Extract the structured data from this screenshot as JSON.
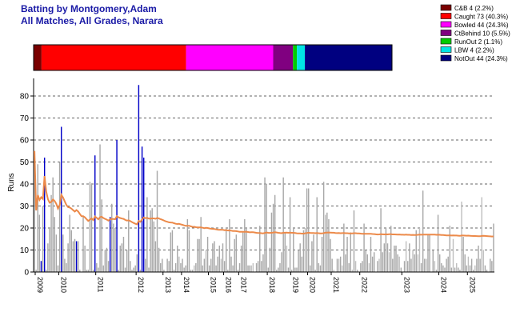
{
  "chart_data": {
    "type": "bar",
    "title": "Batting by Montgomery,Adam",
    "subtitle": "All Matches, All Grades, Narara",
    "ylabel": "Runs",
    "xlabel": "",
    "ylim": [
      0,
      88
    ],
    "yticks": [
      0,
      10,
      20,
      30,
      40,
      50,
      60,
      70,
      80
    ],
    "grid": true,
    "dismissals": [
      {
        "label": "C&B 4 (2.2%)",
        "count": 4,
        "color": "#7a0000"
      },
      {
        "label": "Caught 73 (40.3%)",
        "count": 73,
        "color": "#ff0000"
      },
      {
        "label": "Bowled 44 (24.3%)",
        "count": 44,
        "color": "#ff00ff"
      },
      {
        "label": "CtBehind 10 (5.5%)",
        "count": 10,
        "color": "#800080"
      },
      {
        "label": "RunOut 2 (1.1%)",
        "count": 2,
        "color": "#00cc00"
      },
      {
        "label": "LBW 4 (2.2%)",
        "count": 4,
        "color": "#00e5e5"
      },
      {
        "label": "NotOut 44 (24.3%)",
        "count": 44,
        "color": "#000080"
      }
    ],
    "year_labels": [
      "2009",
      "2010",
      "2011",
      "2012",
      "2013",
      "2014",
      "2015",
      "2016",
      "2017",
      "2018",
      "2019",
      "2020",
      "2021",
      "2022",
      "2023",
      "2024",
      "2025"
    ],
    "year_positions": [
      0,
      14,
      36,
      60,
      76,
      87,
      103,
      112,
      121,
      138,
      152,
      162,
      176,
      193,
      218,
      240,
      257
    ],
    "runs": [
      55,
      1,
      49,
      26,
      5,
      30,
      52,
      1,
      13,
      20,
      35,
      43,
      25,
      17,
      3,
      50,
      66,
      17,
      6,
      4,
      13,
      26,
      19,
      14,
      15,
      14,
      14,
      1,
      0,
      25,
      12,
      1,
      1,
      41,
      40,
      1,
      53,
      4,
      2,
      58,
      33,
      3,
      10,
      11,
      5,
      25,
      31,
      22,
      20,
      60,
      1,
      12,
      13,
      16,
      2,
      10,
      28,
      5,
      1,
      2,
      3,
      8,
      85,
      1,
      57,
      52,
      6,
      34,
      2,
      28,
      29,
      23,
      14,
      46,
      11,
      4,
      6,
      1,
      0,
      6,
      5,
      18,
      19,
      1,
      4,
      12,
      7,
      4,
      6,
      2,
      3,
      24,
      19,
      1,
      1,
      3,
      4,
      15,
      15,
      25,
      3,
      6,
      10,
      16,
      3,
      6,
      13,
      14,
      3,
      7,
      12,
      6,
      13,
      5,
      20,
      1,
      24,
      7,
      3,
      15,
      17,
      1,
      4,
      12,
      18,
      24,
      20,
      3,
      3,
      3,
      4,
      0,
      4,
      5,
      21,
      5,
      8,
      43,
      40,
      2,
      11,
      27,
      31,
      35,
      1,
      2,
      4,
      9,
      43,
      18,
      12,
      2,
      34,
      1,
      20,
      2,
      2,
      10,
      13,
      7,
      19,
      20,
      38,
      38,
      3,
      14,
      17,
      1,
      34,
      4,
      3,
      16,
      41,
      26,
      27,
      24,
      15,
      6,
      1,
      0,
      6,
      6,
      7,
      3,
      22,
      8,
      16,
      4,
      18,
      1,
      28,
      5,
      1,
      0,
      4,
      5,
      22,
      10,
      8,
      4,
      16,
      7,
      9,
      0,
      5,
      6,
      29,
      9,
      13,
      20,
      13,
      9,
      21,
      6,
      12,
      12,
      8,
      7,
      2,
      0,
      5,
      14,
      5,
      13,
      6,
      10,
      8,
      19,
      8,
      20,
      4,
      37,
      6,
      6,
      17,
      17,
      0,
      10,
      5,
      1,
      26,
      8,
      4,
      3,
      2,
      6,
      7,
      21,
      2,
      15,
      2,
      4,
      2,
      1,
      32,
      16,
      8,
      3,
      7,
      3,
      6,
      1,
      3,
      6,
      12,
      6,
      34,
      10,
      3,
      1,
      0,
      6,
      5,
      22
    ],
    "not_out_index": [
      4,
      6,
      16,
      25,
      36,
      45,
      49,
      62,
      64,
      65,
      86,
      95,
      102,
      111,
      129,
      130,
      150,
      161,
      173,
      178,
      181,
      183,
      189,
      191,
      193,
      199,
      205,
      211,
      217,
      219,
      221,
      225,
      228,
      229,
      233,
      236,
      238,
      249,
      251,
      254,
      258,
      262,
      266,
      267
    ]
  }
}
